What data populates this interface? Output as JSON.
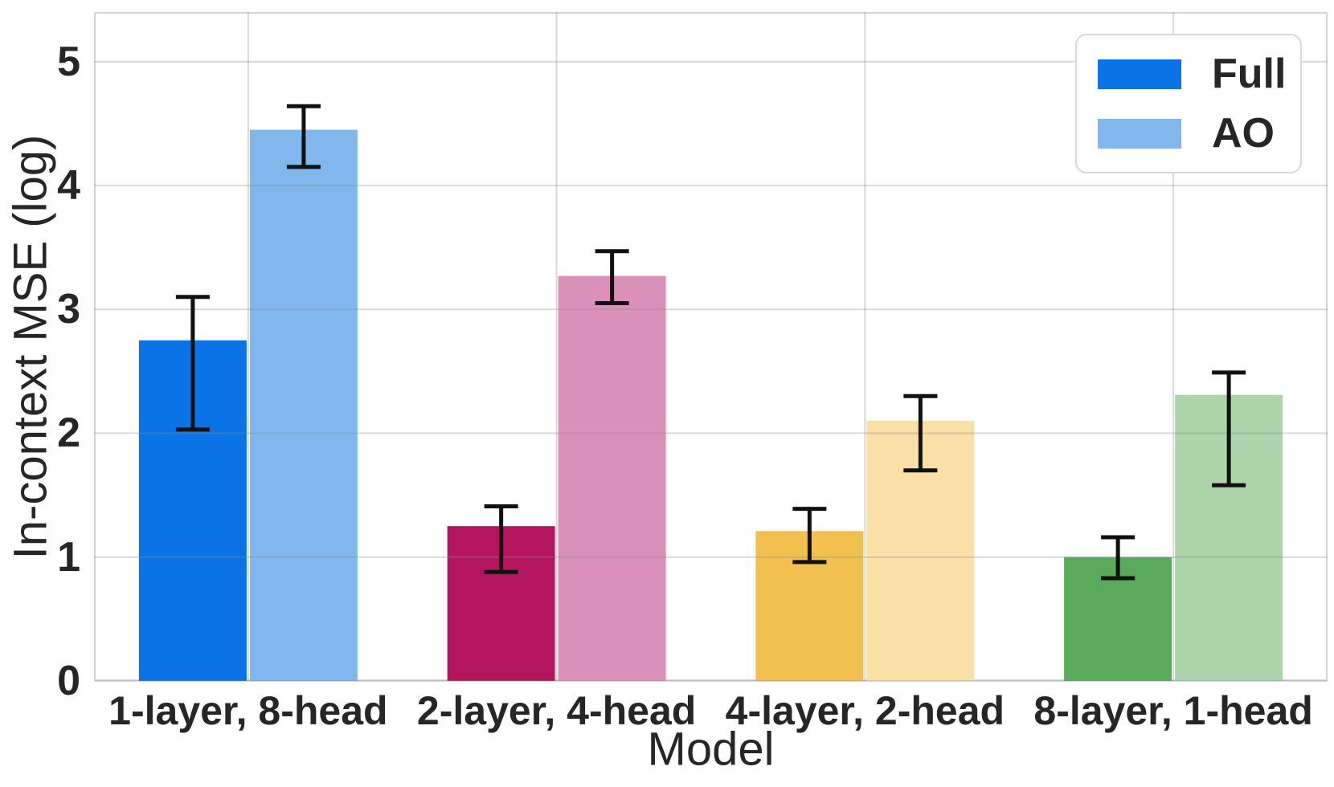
{
  "chart_data": {
    "type": "bar",
    "title": "",
    "xlabel": "Model",
    "ylabel": "In-context MSE (log)",
    "categories": [
      "1-layer, 8-head",
      "2-layer, 4-head",
      "4-layer, 2-head",
      "8-layer, 1-head"
    ],
    "series": [
      {
        "name": "Full",
        "values": [
          2.75,
          1.25,
          1.21,
          1.0
        ],
        "err_low": [
          2.03,
          0.88,
          0.96,
          0.83
        ],
        "err_high": [
          3.1,
          1.41,
          1.39,
          1.16
        ],
        "colors": [
          "#0a73e6",
          "#b3165f",
          "#f2c04e",
          "#59aa5b"
        ]
      },
      {
        "name": "AO",
        "values": [
          4.45,
          3.27,
          2.1,
          2.31
        ],
        "err_low": [
          4.15,
          3.05,
          1.7,
          1.58
        ],
        "err_high": [
          4.64,
          3.47,
          2.3,
          2.49
        ],
        "colors": [
          "#80b7ec",
          "#db90ba",
          "#f8e0a6",
          "#aed4ab"
        ]
      }
    ],
    "ylim": [
      0,
      5.4
    ],
    "yticks": [
      0,
      1,
      2,
      3,
      4,
      5
    ],
    "grid": true,
    "grid_color": "#cccccc",
    "error_bar_color": "#111111",
    "legend_position": "upper right"
  }
}
